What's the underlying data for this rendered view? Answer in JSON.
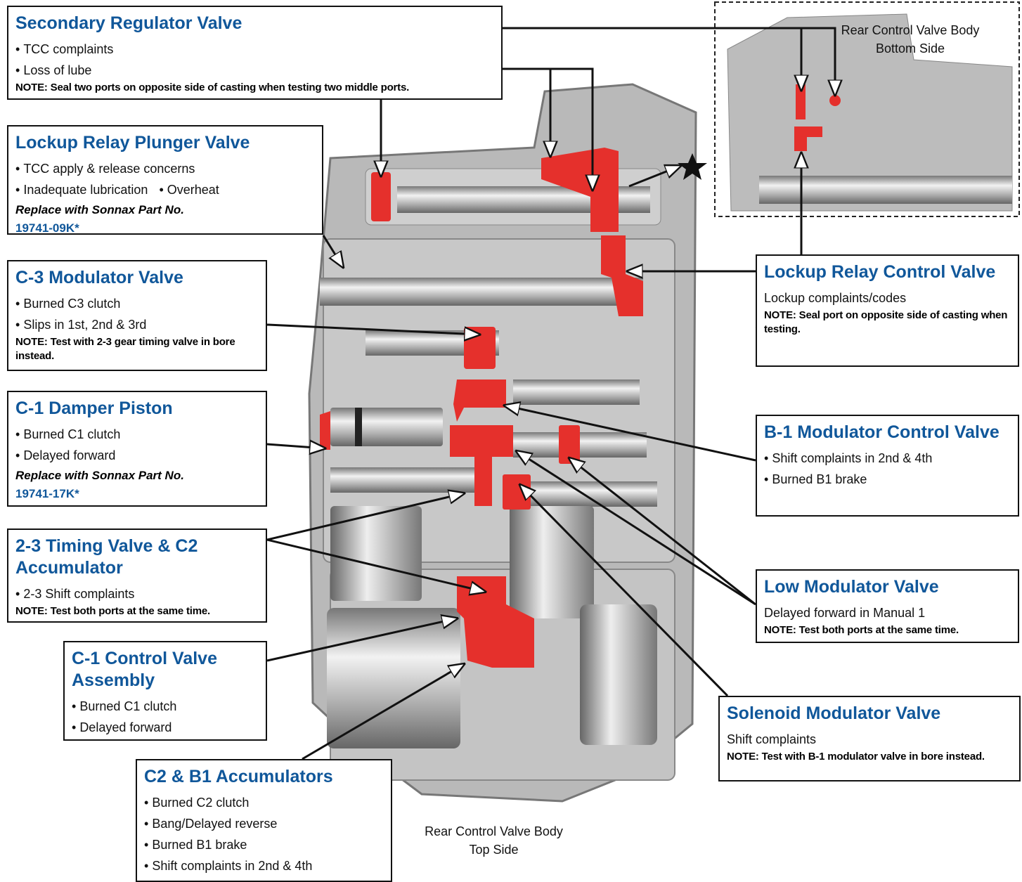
{
  "callouts": [
    {
      "title": "Secondary Regulator Valve",
      "bullets": [
        [
          "TCC complaints"
        ],
        [
          "Loss of lube"
        ]
      ],
      "note_label": "NOTE:",
      "note": "Seal two ports on opposite side of casting when testing two middle ports."
    },
    {
      "title": "Lockup Relay Plunger Valve",
      "bullets": [
        [
          "TCC apply & release concerns"
        ],
        [
          "Inadequate lubrication",
          "Overheat"
        ]
      ],
      "replace": "Replace with Sonnax Part No.",
      "part_no": "19741-09K*"
    },
    {
      "title": "C-3 Modulator Valve",
      "bullets": [
        [
          "Burned C3 clutch"
        ],
        [
          "Slips in 1st, 2nd & 3rd"
        ]
      ],
      "note_label": "NOTE:",
      "note": "Test with 2-3 gear timing valve in bore instead."
    },
    {
      "title": "C-1 Damper Piston",
      "bullets": [
        [
          "Burned C1 clutch"
        ],
        [
          "Delayed forward"
        ]
      ],
      "replace": "Replace with Sonnax Part No.",
      "part_no": "19741-17K*"
    },
    {
      "title": "2-3 Timing Valve & C2 Accumulator",
      "bullets": [
        [
          "2-3 Shift complaints"
        ]
      ],
      "note_label": "NOTE:",
      "note": "Test both ports at the same time."
    },
    {
      "title": "C-1 Control Valve Assembly",
      "bullets": [
        [
          "Burned C1 clutch"
        ],
        [
          "Delayed forward"
        ]
      ]
    },
    {
      "title": "C2 & B1 Accumulators",
      "bullets": [
        [
          "Burned C2 clutch"
        ],
        [
          "Bang/Delayed reverse"
        ],
        [
          "Burned B1 brake"
        ],
        [
          "Shift complaints in 2nd & 4th"
        ]
      ]
    },
    {
      "title": "Lockup Relay Control Valve",
      "text": "Lockup complaints/codes",
      "note_label": "NOTE:",
      "note": "Seal port on opposite side of casting when testing."
    },
    {
      "title": "B-1 Modulator Control Valve",
      "bullets": [
        [
          "Shift complaints in 2nd & 4th"
        ],
        [
          "Burned B1 brake"
        ]
      ]
    },
    {
      "title": "Low Modulator Valve",
      "text": "Delayed forward in Manual 1",
      "note_label": "NOTE:",
      "note": "Test both ports at the same time."
    },
    {
      "title": "Solenoid Modulator Valve",
      "text": "Shift complaints",
      "note_label": "NOTE:",
      "note": "Test with B-1 modulator valve in bore instead."
    }
  ],
  "captions": {
    "bottom_side": [
      "Rear Control Valve Body",
      "Bottom Side"
    ],
    "top_side": [
      "Rear Control Valve Body",
      "Top Side"
    ]
  }
}
